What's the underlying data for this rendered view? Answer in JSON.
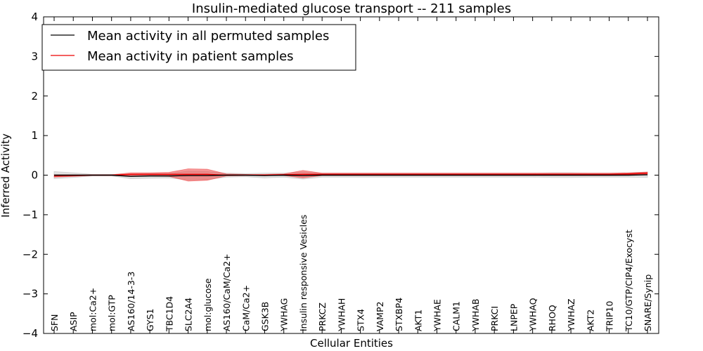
{
  "chart_data": {
    "type": "line",
    "title": "Insulin-mediated glucose transport -- 211 samples",
    "xlabel": "Cellular Entities",
    "ylabel": "Inferred Activity",
    "ylim": [
      -4,
      4
    ],
    "yticks": [
      4,
      3,
      2,
      1,
      0,
      -1,
      -2,
      -3,
      -4
    ],
    "ytick_labels": [
      "4",
      "3",
      "2",
      "1",
      "0",
      "−1",
      "−2",
      "−3",
      "−4"
    ],
    "legend_position": "top-left",
    "grid": false,
    "categories": [
      "SFN",
      "ASIP",
      "mol:Ca2+",
      "mol:GTP",
      "AS160/14-3-3",
      "GYS1",
      "TBC1D4",
      "SLC2A4",
      "mol:glucose",
      "AS160/CaM/Ca2+",
      "CaM/Ca2+",
      "GSK3B",
      "YWHAG",
      "Insulin responsive Vesicles",
      "PRKCZ",
      "YWHAH",
      "STX4",
      "VAMP2",
      "STXBP4",
      "AKT1",
      "YWHAE",
      "CALM1",
      "YWHAB",
      "PRKCI",
      "LNPEP",
      "YWHAQ",
      "RHOQ",
      "YWHAZ",
      "AKT2",
      "TRIP10",
      "TC10/GTP/CIP4/Exocyst",
      "SNARE/Synip"
    ],
    "series": [
      {
        "name": "Mean activity in all permuted samples",
        "color": "#000000",
        "band_color": "#bbbbbb",
        "values": [
          0.0,
          0.0,
          0.0,
          0.0,
          -0.03,
          -0.02,
          -0.02,
          -0.01,
          -0.01,
          0.0,
          0.0,
          -0.01,
          0.0,
          -0.01,
          0.0,
          0.0,
          0.0,
          0.0,
          0.0,
          0.0,
          0.0,
          0.0,
          0.0,
          0.0,
          0.0,
          0.0,
          0.0,
          0.0,
          0.0,
          0.0,
          0.0,
          0.01
        ],
        "lower": [
          -0.09,
          -0.06,
          -0.02,
          -0.02,
          -0.09,
          -0.08,
          -0.07,
          -0.12,
          -0.11,
          -0.05,
          -0.04,
          -0.07,
          -0.05,
          -0.1,
          -0.05,
          -0.05,
          -0.05,
          -0.05,
          -0.05,
          -0.05,
          -0.05,
          -0.05,
          -0.05,
          -0.05,
          -0.05,
          -0.05,
          -0.06,
          -0.06,
          -0.05,
          -0.05,
          -0.05,
          -0.06
        ],
        "upper": [
          0.09,
          0.06,
          0.02,
          0.02,
          0.03,
          0.04,
          0.04,
          0.1,
          0.09,
          0.05,
          0.04,
          0.05,
          0.05,
          0.08,
          0.05,
          0.05,
          0.05,
          0.05,
          0.05,
          0.05,
          0.05,
          0.05,
          0.05,
          0.05,
          0.05,
          0.05,
          0.06,
          0.06,
          0.05,
          0.05,
          0.06,
          0.08
        ]
      },
      {
        "name": "Mean activity in patient samples",
        "color": "#ee0000",
        "band_color": "#ee4444",
        "values": [
          -0.02,
          -0.01,
          0.0,
          0.0,
          0.02,
          0.02,
          0.02,
          0.02,
          0.02,
          0.0,
          0.0,
          0.0,
          0.01,
          0.02,
          0.02,
          0.02,
          0.02,
          0.02,
          0.02,
          0.02,
          0.02,
          0.02,
          0.02,
          0.02,
          0.02,
          0.02,
          0.02,
          0.02,
          0.02,
          0.02,
          0.03,
          0.05
        ],
        "lower": [
          -0.05,
          -0.03,
          -0.01,
          -0.01,
          -0.02,
          -0.02,
          -0.03,
          -0.15,
          -0.13,
          -0.02,
          -0.01,
          -0.01,
          -0.01,
          -0.07,
          -0.01,
          -0.01,
          -0.01,
          -0.01,
          -0.01,
          -0.01,
          -0.01,
          -0.01,
          -0.01,
          -0.01,
          -0.01,
          -0.01,
          -0.01,
          -0.01,
          -0.01,
          -0.01,
          0.0,
          0.02
        ],
        "upper": [
          0.01,
          0.01,
          0.01,
          0.01,
          0.06,
          0.06,
          0.07,
          0.16,
          0.15,
          0.03,
          0.02,
          0.02,
          0.03,
          0.12,
          0.05,
          0.05,
          0.05,
          0.05,
          0.05,
          0.05,
          0.05,
          0.05,
          0.05,
          0.05,
          0.05,
          0.05,
          0.05,
          0.05,
          0.05,
          0.05,
          0.06,
          0.08
        ]
      }
    ]
  }
}
